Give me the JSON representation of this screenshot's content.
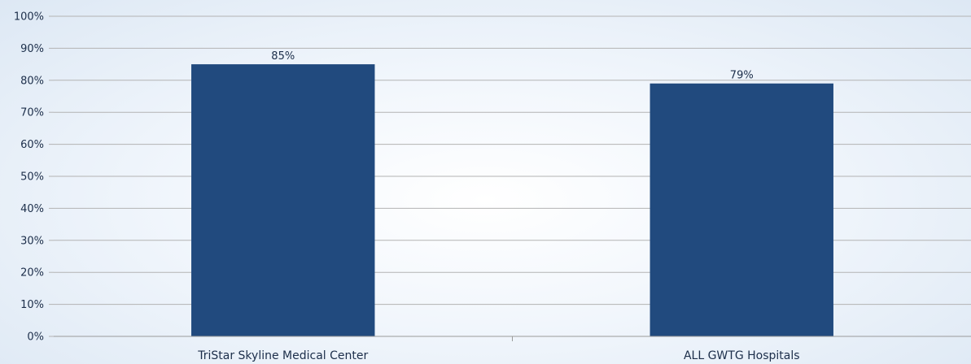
{
  "chart_data": {
    "type": "bar",
    "categories": [
      "TriStar Skyline Medical Center",
      "ALL GWTG Hospitals"
    ],
    "values": [
      85,
      79
    ],
    "data_labels": [
      "85%",
      "79%"
    ],
    "title": "",
    "xlabel": "",
    "ylabel": "",
    "ylim": [
      0,
      100
    ],
    "y_ticks": [
      0,
      10,
      20,
      30,
      40,
      50,
      60,
      70,
      80,
      90,
      100
    ],
    "y_tick_labels": [
      "0%",
      "10%",
      "20%",
      "30%",
      "40%",
      "50%",
      "60%",
      "70%",
      "80%",
      "90%",
      "100%"
    ],
    "grid": true,
    "legend": "none",
    "bar_color": "#214a7e",
    "grid_color": "#b3b3b3"
  }
}
